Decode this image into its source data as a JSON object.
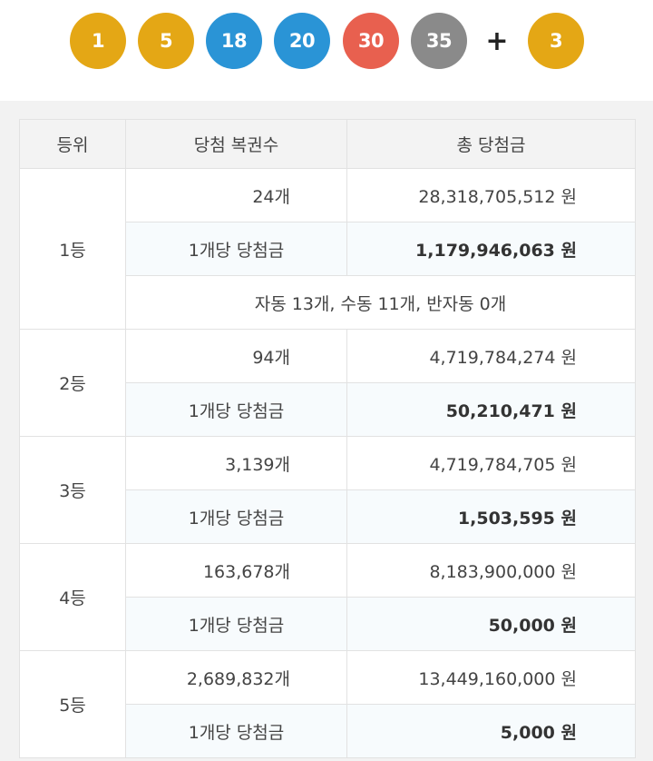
{
  "balls": [
    {
      "number": "1",
      "color": "#e4a715"
    },
    {
      "number": "5",
      "color": "#e4a715"
    },
    {
      "number": "18",
      "color": "#2a94d6"
    },
    {
      "number": "20",
      "color": "#2a94d6"
    },
    {
      "number": "30",
      "color": "#e8604f"
    },
    {
      "number": "35",
      "color": "#8a8a8a"
    }
  ],
  "plus": "+",
  "bonus": {
    "number": "3",
    "color": "#e4a715"
  },
  "table": {
    "headers": {
      "rank": "등위",
      "count": "당첨 복권수",
      "total": "총 당첨금"
    },
    "rows": [
      {
        "rank": "1등",
        "count": "24개",
        "total": "28,318,705,512 원",
        "per_label": "1개당 당첨금",
        "per_amount": "1,179,946,063 원",
        "note": "자동 13개, 수동 11개, 반자동 0개"
      },
      {
        "rank": "2등",
        "count": "94개",
        "total": "4,719,784,274 원",
        "per_label": "1개당 당첨금",
        "per_amount": "50,210,471 원"
      },
      {
        "rank": "3등",
        "count": "3,139개",
        "total": "4,719,784,705 원",
        "per_label": "1개당 당첨금",
        "per_amount": "1,503,595 원"
      },
      {
        "rank": "4등",
        "count": "163,678개",
        "total": "8,183,900,000 원",
        "per_label": "1개당 당첨금",
        "per_amount": "50,000 원"
      },
      {
        "rank": "5등",
        "count": "2,689,832개",
        "total": "13,449,160,000 원",
        "per_label": "1개당 당첨금",
        "per_amount": "5,000 원"
      }
    ]
  }
}
